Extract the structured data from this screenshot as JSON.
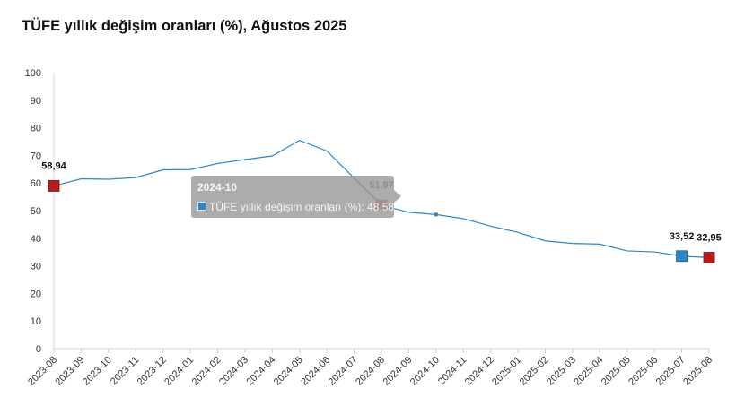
{
  "title": "TÜFE yıllık değişim oranları (%), Ağustos 2025",
  "chart_data": {
    "type": "line",
    "categories": [
      "2023-08",
      "2023-09",
      "2023-10",
      "2023-11",
      "2023-12",
      "2024-01",
      "2024-02",
      "2024-03",
      "2024-04",
      "2024-05",
      "2024-06",
      "2024-07",
      "2024-08",
      "2024-09",
      "2024-10",
      "2024-11",
      "2024-12",
      "2025-01",
      "2025-02",
      "2025-03",
      "2025-04",
      "2025-05",
      "2025-06",
      "2025-07",
      "2025-08"
    ],
    "series": [
      {
        "name": "TÜFE yıllık değişim oranları (%)",
        "values": [
          58.94,
          61.53,
          61.36,
          61.98,
          64.77,
          64.86,
          67.07,
          68.5,
          69.8,
          75.45,
          71.6,
          61.78,
          51.97,
          49.38,
          48.58,
          47.09,
          44.38,
          42.12,
          39.05,
          38.1,
          37.86,
          35.41,
          35.05,
          33.52,
          32.95
        ],
        "color": "#2e86c8"
      }
    ],
    "ylim": [
      0,
      100
    ],
    "yticks": [
      "0",
      "10",
      "20",
      "30",
      "40",
      "50",
      "60",
      "70",
      "80",
      "90",
      "100"
    ],
    "grid": false,
    "data_labels": [
      {
        "index": 0,
        "text": "58,94",
        "marker_color": "#b71c1c"
      },
      {
        "index": 12,
        "text": "51,97",
        "marker_color": "#b71c1c"
      },
      {
        "index": 23,
        "text": "33,52",
        "marker_color": "#2e86c8"
      },
      {
        "index": 24,
        "text": "32,95",
        "marker_color": "#b71c1c"
      }
    ],
    "hover_index": 14,
    "tooltip": {
      "title": "2024-10",
      "series_label": "TÜFE yıllık değişim oranları (%)",
      "value_text": "48,58"
    }
  }
}
